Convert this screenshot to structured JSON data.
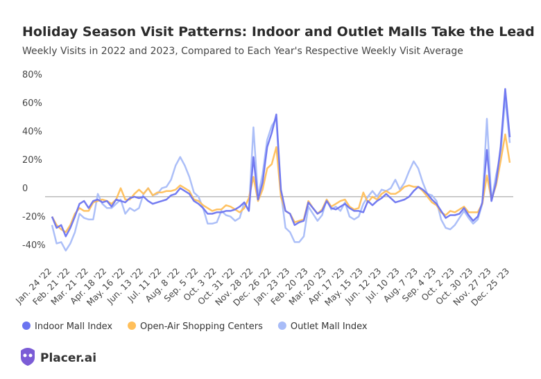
{
  "chart_data": {
    "type": "line",
    "title": "Holiday Season Visit Patterns: Indoor and Outlet Malls Take the Lead",
    "subtitle": "Weekly Visits in 2022 and 2023, Compared to Each Year's Respective Weekly Visit Average",
    "logo": "Placer.ai",
    "categories": [
      "Jan. 24 '22",
      null,
      null,
      null,
      "Feb. 21 '22",
      null,
      null,
      null,
      "Mar. 21 '22",
      null,
      null,
      null,
      "Apr. 18 '22",
      null,
      null,
      null,
      "May. 16 '22",
      null,
      null,
      null,
      "Jun. 13 '22",
      null,
      null,
      null,
      "Jul. 11 '22",
      null,
      null,
      null,
      "Aug. 8 '22",
      null,
      null,
      null,
      "Sep. 5 '22",
      null,
      null,
      null,
      "Oct. 3 '22",
      null,
      null,
      null,
      "Oct. 31 '22",
      null,
      null,
      null,
      "Nov. 28 '22",
      null,
      null,
      null,
      "Dec. 26 '22",
      null,
      null,
      null,
      "Jan. 23 '23",
      null,
      null,
      null,
      "Feb. 20 '23",
      null,
      null,
      null,
      "Mar. 20 '23",
      null,
      null,
      null,
      "Apr. 17 '23",
      null,
      null,
      null,
      "May. 15 '23",
      null,
      null,
      null,
      "Jun. 12 '23",
      null,
      null,
      null,
      "Jul. 10 '23",
      null,
      null,
      null,
      "Aug. 7 '23",
      null,
      null,
      null,
      "Sep. 4 '23",
      null,
      null,
      null,
      "Oct. 2 '23",
      null,
      null,
      null,
      "Oct. 30 '23",
      null,
      null,
      null,
      "Nov. 27 '23",
      null,
      null,
      null,
      "Dec. 25 '23"
    ],
    "series": [
      {
        "name": "Indoor Mall Index",
        "color": "#6b74f0",
        "values": [
          -14,
          -22,
          -20,
          -28,
          -22,
          -14,
          -5,
          -3,
          -8,
          -3,
          -2,
          -4,
          -3,
          -7,
          -2,
          -3,
          -4,
          -1,
          0,
          -1,
          0,
          -3,
          -5,
          -4,
          -3,
          -2,
          1,
          2,
          6,
          4,
          2,
          -3,
          -5,
          -8,
          -12,
          -12,
          -11,
          -11,
          -10,
          -10,
          -9,
          -7,
          -4,
          -10,
          28,
          -2,
          10,
          35,
          45,
          58,
          5,
          -10,
          -12,
          -20,
          -18,
          -17,
          -4,
          -8,
          -12,
          -10,
          -3,
          -8,
          -9,
          -7,
          -5,
          -8,
          -10,
          -10,
          -11,
          -3,
          -6,
          -3,
          -1,
          2,
          -1,
          -4,
          -3,
          -2,
          0,
          4,
          7,
          5,
          2,
          -2,
          -5,
          -10,
          -15,
          -13,
          -13,
          -12,
          -8,
          -13,
          -17,
          -14,
          -4,
          33,
          -3,
          10,
          35,
          76,
          42
        ]
      },
      {
        "name": "Open-Air Shopping Centers",
        "color": "#ffbf5a",
        "values": [
          -14,
          -20,
          -23,
          -25,
          -20,
          -12,
          -8,
          -10,
          -10,
          -4,
          -3,
          -2,
          -3,
          -5,
          -2,
          6,
          -2,
          -2,
          2,
          5,
          2,
          6,
          1,
          3,
          3,
          4,
          4,
          5,
          8,
          6,
          4,
          -2,
          -3,
          -6,
          -8,
          -10,
          -9,
          -9,
          -6,
          -7,
          -9,
          -11,
          -8,
          -1,
          14,
          -3,
          5,
          20,
          23,
          35,
          0,
          -10,
          -12,
          -18,
          -17,
          -16,
          -3,
          -8,
          -12,
          -9,
          -2,
          -7,
          -5,
          -3,
          -2,
          -7,
          -9,
          -8,
          3,
          -4,
          0,
          -2,
          2,
          4,
          2,
          2,
          4,
          7,
          8,
          7,
          7,
          4,
          0,
          -4,
          -6,
          -11,
          -13,
          -10,
          -11,
          -9,
          -7,
          -11,
          -11,
          -11,
          -5,
          15,
          -2,
          8,
          25,
          44,
          24
        ]
      },
      {
        "name": "Outlet Mall Index",
        "color": "#a8bcf8",
        "values": [
          -20,
          -33,
          -32,
          -38,
          -33,
          -25,
          -12,
          -15,
          -16,
          -16,
          2,
          -5,
          -8,
          -8,
          -5,
          -2,
          -12,
          -8,
          -10,
          -8,
          2,
          6,
          1,
          2,
          6,
          7,
          12,
          22,
          28,
          22,
          14,
          3,
          0,
          -8,
          -19,
          -19,
          -18,
          -10,
          -13,
          -14,
          -17,
          -15,
          -4,
          -10,
          49,
          0,
          16,
          40,
          50,
          55,
          3,
          -22,
          -25,
          -32,
          -32,
          -28,
          -7,
          -12,
          -17,
          -13,
          -2,
          -9,
          -7,
          -10,
          -4,
          -14,
          -16,
          -14,
          -5,
          0,
          4,
          0,
          5,
          4,
          6,
          12,
          5,
          10,
          18,
          25,
          20,
          10,
          2,
          1,
          -3,
          -16,
          -22,
          -23,
          -20,
          -15,
          -10,
          -15,
          -19,
          -16,
          -5,
          55,
          -3,
          15,
          30,
          70,
          38
        ]
      }
    ],
    "ylim": [
      -45,
      85
    ],
    "yticks": [
      {
        "value": -40,
        "label": "-40%"
      },
      {
        "value": -20,
        "label": "-20%"
      },
      0,
      {
        "value": 20,
        "label": "20%"
      },
      {
        "value": 40,
        "label": "40%"
      },
      {
        "value": 60,
        "label": "60%"
      },
      {
        "value": 80,
        "label": "80%"
      }
    ],
    "grid": false,
    "legend": "bottom"
  }
}
